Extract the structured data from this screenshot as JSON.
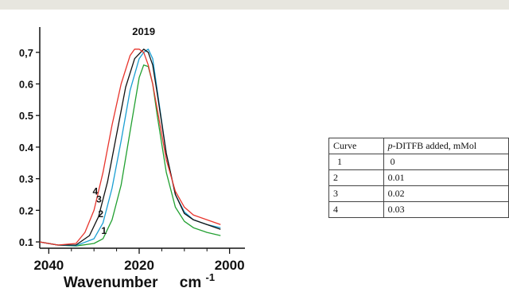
{
  "chart_data": {
    "type": "line",
    "title": "",
    "xlabel": "Wavenumber",
    "xlabel_unit": "cm",
    "xlabel_unit_exp": "-1",
    "xlim": [
      2042,
      1998
    ],
    "ylim": [
      0.08,
      0.78
    ],
    "x_reversed": true,
    "grid": false,
    "x_ticks": [
      {
        "value": 2040,
        "label": "2040"
      },
      {
        "value": 2020,
        "label": "2020"
      },
      {
        "value": 2000,
        "label": "2000"
      }
    ],
    "y_ticks": [
      {
        "value": 0.1,
        "label": "0.1"
      },
      {
        "value": 0.2,
        "label": "0.2"
      },
      {
        "value": 0.3,
        "label": "0.3"
      },
      {
        "value": 0.4,
        "label": "0.4"
      },
      {
        "value": 0.5,
        "label": "0.5"
      },
      {
        "value": 0.6,
        "label": "0.6"
      },
      {
        "value": 0.7,
        "label": "0,7"
      }
    ],
    "peak_annotation": {
      "x": 2019,
      "y": 0.715,
      "label": "2019"
    },
    "series": [
      {
        "name": "1",
        "color": "#22a031",
        "label_at": {
          "x": 2027.8,
          "y": 0.125
        },
        "points": [
          [
            2042,
            0.1
          ],
          [
            2038,
            0.09
          ],
          [
            2034,
            0.087
          ],
          [
            2030,
            0.095
          ],
          [
            2028,
            0.11
          ],
          [
            2026,
            0.17
          ],
          [
            2024,
            0.28
          ],
          [
            2022,
            0.45
          ],
          [
            2020,
            0.62
          ],
          [
            2019,
            0.66
          ],
          [
            2018,
            0.655
          ],
          [
            2017,
            0.6
          ],
          [
            2016,
            0.5
          ],
          [
            2014,
            0.32
          ],
          [
            2012,
            0.21
          ],
          [
            2010,
            0.165
          ],
          [
            2008,
            0.145
          ],
          [
            2005,
            0.13
          ],
          [
            2002,
            0.12
          ]
        ]
      },
      {
        "name": "2",
        "color": "#1a9fd3",
        "label_at": {
          "x": 2028.5,
          "y": 0.178
        },
        "points": [
          [
            2042,
            0.1
          ],
          [
            2038,
            0.09
          ],
          [
            2034,
            0.088
          ],
          [
            2030,
            0.11
          ],
          [
            2028,
            0.16
          ],
          [
            2026,
            0.27
          ],
          [
            2024,
            0.42
          ],
          [
            2022,
            0.58
          ],
          [
            2020,
            0.68
          ],
          [
            2019,
            0.7
          ],
          [
            2018,
            0.71
          ],
          [
            2017,
            0.68
          ],
          [
            2016,
            0.58
          ],
          [
            2014,
            0.38
          ],
          [
            2012,
            0.25
          ],
          [
            2010,
            0.195
          ],
          [
            2008,
            0.17
          ],
          [
            2005,
            0.155
          ],
          [
            2002,
            0.145
          ]
        ]
      },
      {
        "name": "3",
        "color": "#111111",
        "label_at": {
          "x": 2028.9,
          "y": 0.225
        },
        "points": [
          [
            2042,
            0.1
          ],
          [
            2038,
            0.09
          ],
          [
            2034,
            0.09
          ],
          [
            2031,
            0.12
          ],
          [
            2029,
            0.18
          ],
          [
            2027,
            0.29
          ],
          [
            2025,
            0.44
          ],
          [
            2023,
            0.59
          ],
          [
            2021,
            0.68
          ],
          [
            2019,
            0.71
          ],
          [
            2018,
            0.7
          ],
          [
            2017,
            0.66
          ],
          [
            2016,
            0.57
          ],
          [
            2014,
            0.38
          ],
          [
            2012,
            0.25
          ],
          [
            2010,
            0.19
          ],
          [
            2008,
            0.17
          ],
          [
            2005,
            0.155
          ],
          [
            2002,
            0.14
          ]
        ]
      },
      {
        "name": "4",
        "color": "#e8342c",
        "label_at": {
          "x": 2029.7,
          "y": 0.25
        },
        "points": [
          [
            2042,
            0.1
          ],
          [
            2038,
            0.09
          ],
          [
            2034,
            0.095
          ],
          [
            2032,
            0.13
          ],
          [
            2030,
            0.2
          ],
          [
            2028,
            0.32
          ],
          [
            2026,
            0.47
          ],
          [
            2024,
            0.6
          ],
          [
            2022,
            0.69
          ],
          [
            2021,
            0.71
          ],
          [
            2020,
            0.71
          ],
          [
            2019,
            0.7
          ],
          [
            2018,
            0.66
          ],
          [
            2017,
            0.6
          ],
          [
            2016,
            0.52
          ],
          [
            2014,
            0.36
          ],
          [
            2012,
            0.26
          ],
          [
            2010,
            0.21
          ],
          [
            2008,
            0.185
          ],
          [
            2005,
            0.17
          ],
          [
            2002,
            0.155
          ]
        ]
      }
    ]
  },
  "legend_table": {
    "headers": [
      "Curve",
      "-DITFB added, mMol"
    ],
    "header_prefix_italic": "p",
    "rows": [
      [
        "1",
        " 0"
      ],
      [
        "2",
        "0.01"
      ],
      [
        "3",
        "0.02"
      ],
      [
        "4",
        "0.03"
      ]
    ]
  }
}
